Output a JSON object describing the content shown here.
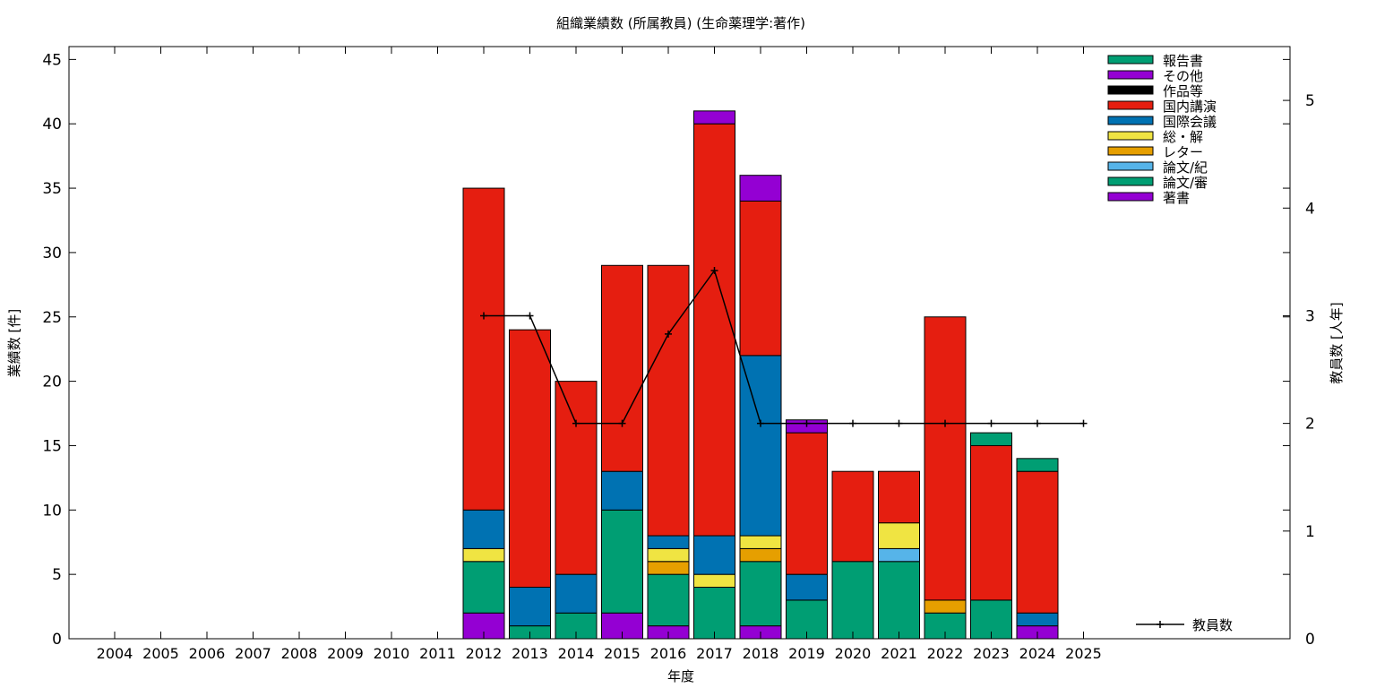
{
  "chart_data": {
    "type": "bar",
    "stacked": true,
    "title": "組織業績数 (所属教員) (生命薬理学:著作)",
    "xlabel": "年度",
    "ylabel": "業績数 [件]",
    "y2label": "教員数 [人年]",
    "categories": [
      "2004",
      "2005",
      "2006",
      "2007",
      "2008",
      "2009",
      "2010",
      "2011",
      "2012",
      "2013",
      "2014",
      "2015",
      "2016",
      "2017",
      "2018",
      "2019",
      "2020",
      "2021",
      "2022",
      "2023",
      "2024",
      "2025"
    ],
    "ylim": [
      0,
      46
    ],
    "yticks": [
      0,
      5,
      10,
      15,
      20,
      25,
      30,
      35,
      40,
      45
    ],
    "y2lim": [
      0,
      5.5
    ],
    "y2ticks": [
      0,
      1,
      2,
      3,
      4,
      5
    ],
    "grid": false,
    "legend_position": "top-right",
    "series": [
      {
        "name": "著書",
        "color": "#9400d3",
        "values": [
          0,
          0,
          0,
          0,
          0,
          0,
          0,
          0,
          2,
          0,
          0,
          2,
          1,
          0,
          1,
          0,
          0,
          0,
          0,
          0,
          1,
          0
        ]
      },
      {
        "name": "論文/審",
        "color": "#009e73",
        "values": [
          0,
          0,
          0,
          0,
          0,
          0,
          0,
          0,
          4,
          1,
          2,
          8,
          4,
          4,
          5,
          3,
          6,
          6,
          2,
          3,
          0,
          0
        ]
      },
      {
        "name": "論文/紀",
        "color": "#56b4e9",
        "values": [
          0,
          0,
          0,
          0,
          0,
          0,
          0,
          0,
          0,
          0,
          0,
          0,
          0,
          0,
          0,
          0,
          0,
          1,
          0,
          0,
          0,
          0
        ]
      },
      {
        "name": "レター",
        "color": "#e69f00",
        "values": [
          0,
          0,
          0,
          0,
          0,
          0,
          0,
          0,
          0,
          0,
          0,
          0,
          1,
          0,
          1,
          0,
          0,
          0,
          1,
          0,
          0,
          0
        ]
      },
      {
        "name": "総・解",
        "color": "#f0e442",
        "values": [
          0,
          0,
          0,
          0,
          0,
          0,
          0,
          0,
          1,
          0,
          0,
          0,
          1,
          1,
          1,
          0,
          0,
          2,
          0,
          0,
          0,
          0
        ]
      },
      {
        "name": "国際会議",
        "color": "#0072b2",
        "values": [
          0,
          0,
          0,
          0,
          0,
          0,
          0,
          0,
          3,
          3,
          3,
          3,
          1,
          3,
          14,
          2,
          0,
          0,
          0,
          0,
          1,
          0
        ]
      },
      {
        "name": "国内講演",
        "color": "#e51e10",
        "values": [
          0,
          0,
          0,
          0,
          0,
          0,
          0,
          0,
          25,
          20,
          15,
          16,
          21,
          32,
          12,
          11,
          7,
          4,
          22,
          12,
          11,
          0
        ]
      },
      {
        "name": "作品等",
        "color": "#000000",
        "values": [
          0,
          0,
          0,
          0,
          0,
          0,
          0,
          0,
          0,
          0,
          0,
          0,
          0,
          0,
          0,
          0,
          0,
          0,
          0,
          0,
          0,
          0
        ]
      },
      {
        "name": "その他",
        "color": "#9400d3",
        "values": [
          0,
          0,
          0,
          0,
          0,
          0,
          0,
          0,
          0,
          0,
          0,
          0,
          0,
          1,
          2,
          1,
          0,
          0,
          0,
          0,
          0,
          0
        ]
      },
      {
        "name": "報告書",
        "color": "#009e73",
        "values": [
          0,
          0,
          0,
          0,
          0,
          0,
          0,
          0,
          0,
          0,
          0,
          0,
          0,
          0,
          0,
          0,
          0,
          0,
          0,
          1,
          1,
          0
        ]
      }
    ],
    "line_series": {
      "name": "教員数",
      "color": "#000000",
      "axis": "y2",
      "x": [
        "2012",
        "2013",
        "2014",
        "2015",
        "2016",
        "2017",
        "2018",
        "2019",
        "2020",
        "2021",
        "2022",
        "2023",
        "2024",
        "2025"
      ],
      "values": [
        3,
        3,
        2,
        2,
        2.83,
        3.42,
        2,
        2,
        2,
        2,
        2,
        2,
        2,
        2
      ]
    }
  }
}
